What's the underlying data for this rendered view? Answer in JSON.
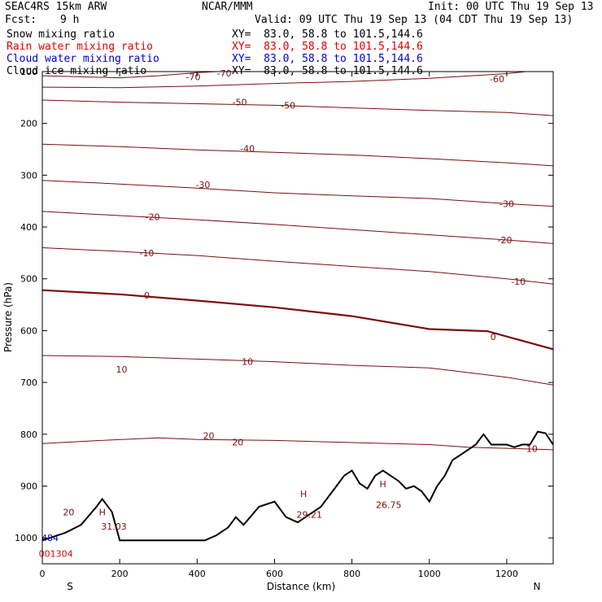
{
  "header": {
    "model": "SEAC4RS 15km ARW",
    "org": "NCAR/MMM",
    "init": "Init: 00 UTC Thu 19 Sep 13",
    "fcst_label": "Fcst:",
    "fcst_value": "9 h",
    "valid": "Valid: 09 UTC Thu 19 Sep 13 (04 CDT Thu 19 Sep 13)"
  },
  "legend": [
    {
      "name": "Snow mixing ratio",
      "xy": "XY=  83.0, 58.8 to 101.5,144.6",
      "color": "#000000"
    },
    {
      "name": "Rain water mixing ratio",
      "xy": "XY=  83.0, 58.8 to 101.5,144.6",
      "color": "#e00000"
    },
    {
      "name": "Cloud water mixing ratio",
      "xy": "XY=  83.0, 58.8 to 101.5,144.6",
      "color": "#0000d0"
    },
    {
      "name": "Cloud ice mixing ratio",
      "xy": "XY=  83.0, 58.8 to 101.5,144.6",
      "color": "#000000"
    }
  ],
  "colors": {
    "isotherm": "#7a0e0e",
    "zero_isotherm": "#7a0e0e",
    "terrain": "#000000",
    "blue_marker": "#0000d0",
    "red_marker": "#e00000"
  },
  "chart_data": {
    "type": "line",
    "xlabel": "Distance (km)",
    "ylabel": "Pressure (hPa)",
    "xlim": [
      0,
      1320
    ],
    "ylim": [
      1050,
      100
    ],
    "x_ticks": [
      0,
      200,
      400,
      600,
      800,
      1000,
      1200
    ],
    "y_ticks": [
      100,
      200,
      300,
      400,
      500,
      600,
      700,
      800,
      900,
      1000
    ],
    "x_end_labels": {
      "left": "S",
      "right": "N"
    },
    "isotherms": [
      {
        "value": -70,
        "label": "-70",
        "pts": [
          [
            0,
            108
          ],
          [
            200,
            112
          ],
          [
            300,
            108
          ],
          [
            400,
            102
          ],
          [
            450,
            100
          ]
        ]
      },
      {
        "value": -60,
        "label": "-60",
        "pts": [
          [
            0,
            130
          ],
          [
            200,
            131
          ],
          [
            400,
            128
          ],
          [
            600,
            123
          ],
          [
            800,
            119
          ],
          [
            1000,
            113
          ],
          [
            1200,
            104
          ],
          [
            1250,
            100
          ]
        ]
      },
      {
        "value": -50,
        "label": "-50",
        "pts": [
          [
            0,
            155
          ],
          [
            200,
            159
          ],
          [
            400,
            162
          ],
          [
            600,
            165
          ],
          [
            800,
            170
          ],
          [
            1000,
            175
          ],
          [
            1200,
            179
          ],
          [
            1320,
            185
          ]
        ]
      },
      {
        "value": -40,
        "label": "-40",
        "pts": [
          [
            0,
            240
          ],
          [
            200,
            245
          ],
          [
            400,
            251
          ],
          [
            600,
            256
          ],
          [
            800,
            261
          ],
          [
            1000,
            268
          ],
          [
            1200,
            276
          ],
          [
            1320,
            282
          ]
        ]
      },
      {
        "value": -30,
        "label": "-30",
        "pts": [
          [
            0,
            310
          ],
          [
            200,
            317
          ],
          [
            400,
            325
          ],
          [
            600,
            334
          ],
          [
            800,
            340
          ],
          [
            1000,
            345
          ],
          [
            1200,
            355
          ],
          [
            1320,
            360
          ]
        ]
      },
      {
        "value": -20,
        "label": "-20",
        "pts": [
          [
            0,
            370
          ],
          [
            200,
            378
          ],
          [
            400,
            386
          ],
          [
            600,
            395
          ],
          [
            800,
            405
          ],
          [
            1000,
            415
          ],
          [
            1200,
            425
          ],
          [
            1320,
            432
          ]
        ]
      },
      {
        "value": -10,
        "label": "-10",
        "pts": [
          [
            0,
            440
          ],
          [
            200,
            447
          ],
          [
            400,
            455
          ],
          [
            600,
            466
          ],
          [
            800,
            476
          ],
          [
            1000,
            486
          ],
          [
            1200,
            500
          ],
          [
            1320,
            510
          ]
        ]
      },
      {
        "value": 0,
        "label": "0",
        "pts": [
          [
            0,
            522
          ],
          [
            200,
            530
          ],
          [
            400,
            542
          ],
          [
            600,
            555
          ],
          [
            800,
            572
          ],
          [
            1000,
            597
          ],
          [
            1150,
            601
          ],
          [
            1320,
            636
          ]
        ]
      },
      {
        "value": 10,
        "label": "10",
        "pts": [
          [
            0,
            648
          ],
          [
            200,
            650
          ],
          [
            400,
            655
          ],
          [
            600,
            660
          ],
          [
            800,
            667
          ],
          [
            1000,
            672
          ],
          [
            1200,
            690
          ],
          [
            1320,
            705
          ]
        ]
      },
      {
        "value": 20,
        "label": "20",
        "pts": [
          [
            0,
            818
          ],
          [
            150,
            812
          ],
          [
            300,
            807
          ],
          [
            400,
            810
          ],
          [
            600,
            812
          ],
          [
            800,
            816
          ],
          [
            1000,
            820
          ],
          [
            1100,
            825
          ],
          [
            1320,
            830
          ]
        ]
      }
    ],
    "terrain": {
      "x": [
        0,
        60,
        100,
        140,
        155,
        180,
        200,
        260,
        320,
        380,
        420,
        450,
        470,
        480,
        500,
        520,
        560,
        600,
        630,
        660,
        700,
        720,
        760,
        780,
        800,
        820,
        840,
        860,
        880,
        920,
        940,
        960,
        980,
        1000,
        1020,
        1040,
        1060,
        1080,
        1100,
        1120,
        1140,
        1160,
        1180,
        1200,
        1220,
        1240,
        1260,
        1280,
        1300,
        1320
      ],
      "p": [
        1005,
        990,
        975,
        940,
        925,
        950,
        1005,
        1005,
        1005,
        1005,
        1005,
        995,
        985,
        980,
        960,
        975,
        940,
        930,
        960,
        970,
        950,
        940,
        900,
        880,
        870,
        895,
        905,
        880,
        870,
        890,
        905,
        900,
        910,
        930,
        900,
        880,
        850,
        840,
        830,
        820,
        800,
        820,
        820,
        820,
        825,
        820,
        820,
        795,
        798,
        820
      ]
    },
    "annotations": [
      {
        "text": "H",
        "x": 155,
        "p": 950
      },
      {
        "text": "31.03",
        "x": 185,
        "p": 978
      },
      {
        "text": "H",
        "x": 675,
        "p": 915
      },
      {
        "text": "29.21",
        "x": 690,
        "p": 955
      },
      {
        "text": "H",
        "x": 880,
        "p": 896
      },
      {
        "text": "26.75",
        "x": 895,
        "p": 936
      },
      {
        "text": "484",
        "x": 20,
        "p": 1000
      },
      {
        "text": "001304",
        "x": 35,
        "p": 1030
      }
    ],
    "contour_labels": [
      {
        "text": "-70",
        "x": 390,
        "p": 110
      },
      {
        "text": "-70",
        "x": 470,
        "p": 103
      },
      {
        "text": "-60",
        "x": 1175,
        "p": 114
      },
      {
        "text": "-50",
        "x": 510,
        "p": 159
      },
      {
        "text": "-50",
        "x": 635,
        "p": 165
      },
      {
        "text": "-40",
        "x": 530,
        "p": 248
      },
      {
        "text": "-30",
        "x": 415,
        "p": 318
      },
      {
        "text": "-30",
        "x": 1200,
        "p": 355
      },
      {
        "text": "-20",
        "x": 285,
        "p": 380
      },
      {
        "text": "-20",
        "x": 1195,
        "p": 425
      },
      {
        "text": "-10",
        "x": 270,
        "p": 450
      },
      {
        "text": "-10",
        "x": 1230,
        "p": 505
      },
      {
        "text": "0",
        "x": 270,
        "p": 532
      },
      {
        "text": "0",
        "x": 1165,
        "p": 612
      },
      {
        "text": "10",
        "x": 205,
        "p": 675
      },
      {
        "text": "10",
        "x": 530,
        "p": 660
      },
      {
        "text": "20",
        "x": 430,
        "p": 803
      },
      {
        "text": "20",
        "x": 505,
        "p": 815
      },
      {
        "text": "20",
        "x": 68,
        "p": 950
      },
      {
        "text": "10",
        "x": 1265,
        "p": 828
      }
    ]
  }
}
